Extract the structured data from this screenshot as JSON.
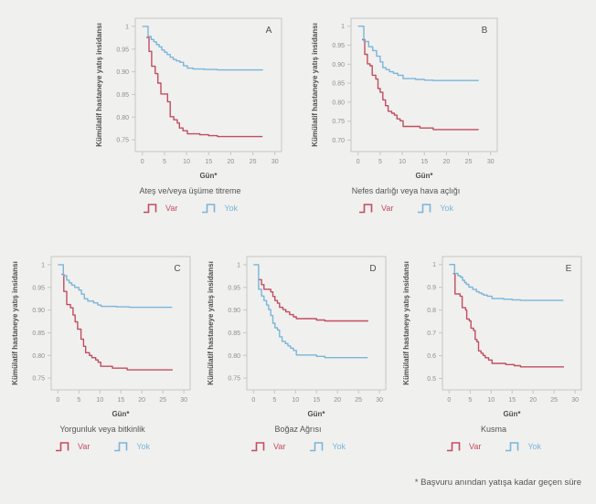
{
  "colors": {
    "var": "#c24d5e",
    "yok": "#7ab5d8",
    "frame": "#c6c6c6",
    "background": "#f0f0ef",
    "tick_text": "#8e8e8e",
    "label_text": "#4f4f4f"
  },
  "legend": {
    "var_label": "Var",
    "yok_label": "Yok"
  },
  "footnote": "* Başvuru anından yatışa kadar geçen süre",
  "chart_data": [
    {
      "type": "line",
      "step": true,
      "panel": "A",
      "title": "Ateş ve/veya üşüme titreme",
      "xlabel": "Gün*",
      "ylabel": "Kümülatif hastaneye yatış insidansı",
      "grid": false,
      "legend_position": "below",
      "xlim": [
        -1.6,
        31.5
      ],
      "ylim": [
        0.724,
        1.018
      ],
      "xticks": [
        0,
        5,
        10,
        15,
        20,
        25,
        30
      ],
      "yticks": [
        {
          "v": 0.75,
          "label": "0.75"
        },
        {
          "v": 0.8,
          "label": "0.80"
        },
        {
          "v": 0.85,
          "label": "0.85"
        },
        {
          "v": 0.9,
          "label": "0.90"
        },
        {
          "v": 0.95,
          "label": "0.95"
        },
        {
          "v": 1.0,
          "label": "1"
        }
      ],
      "series": [
        {
          "name": "Var",
          "color": "var",
          "points": [
            [
              0.9,
              0.976
            ],
            [
              1.5,
              0.945
            ],
            [
              2.1,
              0.912
            ],
            [
              2.9,
              0.896
            ],
            [
              3.5,
              0.875
            ],
            [
              4.2,
              0.851
            ],
            [
              5.7,
              0.834
            ],
            [
              6.3,
              0.801
            ],
            [
              7.1,
              0.794
            ],
            [
              7.9,
              0.787
            ],
            [
              8.4,
              0.776
            ],
            [
              9.2,
              0.77
            ],
            [
              10.2,
              0.763
            ],
            [
              13,
              0.761
            ],
            [
              15,
              0.759
            ],
            [
              17,
              0.757
            ],
            [
              27.2,
              0.757
            ]
          ]
        },
        {
          "name": "Yok",
          "color": "yok",
          "points": [
            [
              0,
              1
            ],
            [
              1.3,
              0.978
            ],
            [
              2,
              0.971
            ],
            [
              2.6,
              0.966
            ],
            [
              3.2,
              0.96
            ],
            [
              3.8,
              0.955
            ],
            [
              4.4,
              0.948
            ],
            [
              5,
              0.943
            ],
            [
              5.6,
              0.938
            ],
            [
              6.3,
              0.932
            ],
            [
              7,
              0.927
            ],
            [
              7.7,
              0.924
            ],
            [
              8.5,
              0.921
            ],
            [
              9.3,
              0.913
            ],
            [
              10.2,
              0.908
            ],
            [
              11.5,
              0.906
            ],
            [
              14,
              0.905
            ],
            [
              17,
              0.904
            ],
            [
              27.2,
              0.903
            ]
          ]
        }
      ]
    },
    {
      "type": "line",
      "step": true,
      "panel": "B",
      "title": "Nefes darlığı veya hava açlığı",
      "xlabel": "Gün*",
      "ylabel": "Kümülatif hastaneye yatış insidansı",
      "grid": false,
      "legend_position": "below",
      "xlim": [
        -1.6,
        31.5
      ],
      "ylim": [
        0.67,
        1.021
      ],
      "xticks": [
        0,
        5,
        10,
        15,
        20,
        25,
        30
      ],
      "yticks": [
        {
          "v": 0.7,
          "label": "0.70"
        },
        {
          "v": 0.75,
          "label": "0.75"
        },
        {
          "v": 0.8,
          "label": "0.80"
        },
        {
          "v": 0.85,
          "label": "0.85"
        },
        {
          "v": 0.9,
          "label": "0.90"
        },
        {
          "v": 0.95,
          "label": "0.95"
        },
        {
          "v": 1.0,
          "label": "1"
        }
      ],
      "series": [
        {
          "name": "Var",
          "color": "var",
          "points": [
            [
              0.9,
              0.965
            ],
            [
              1.5,
              0.926
            ],
            [
              2.1,
              0.901
            ],
            [
              2.7,
              0.896
            ],
            [
              3.2,
              0.871
            ],
            [
              4,
              0.861
            ],
            [
              4.5,
              0.836
            ],
            [
              5,
              0.826
            ],
            [
              5.6,
              0.806
            ],
            [
              6.2,
              0.791
            ],
            [
              6.8,
              0.776
            ],
            [
              7.6,
              0.771
            ],
            [
              8.2,
              0.766
            ],
            [
              8.8,
              0.756
            ],
            [
              9.5,
              0.751
            ],
            [
              10.2,
              0.736
            ],
            [
              14,
              0.732
            ],
            [
              17,
              0.728
            ],
            [
              27.2,
              0.727
            ]
          ]
        },
        {
          "name": "Yok",
          "color": "yok",
          "points": [
            [
              0,
              1
            ],
            [
              1.3,
              0.96
            ],
            [
              2.4,
              0.946
            ],
            [
              3.3,
              0.936
            ],
            [
              4.2,
              0.921
            ],
            [
              5,
              0.906
            ],
            [
              5.6,
              0.891
            ],
            [
              6.3,
              0.886
            ],
            [
              7.1,
              0.88
            ],
            [
              8,
              0.876
            ],
            [
              9,
              0.871
            ],
            [
              10.2,
              0.862
            ],
            [
              13,
              0.86
            ],
            [
              15,
              0.858
            ],
            [
              17,
              0.857
            ],
            [
              27.2,
              0.856
            ]
          ]
        }
      ]
    },
    {
      "type": "line",
      "step": true,
      "panel": "C",
      "title": "Yorgunluk veya bitkinlik",
      "xlabel": "Gün*",
      "ylabel": "Kümülatif hastaneye yatış insidansı",
      "grid": false,
      "legend_position": "below",
      "xlim": [
        -1.6,
        31.5
      ],
      "ylim": [
        0.724,
        1.018
      ],
      "xticks": [
        0,
        5,
        10,
        15,
        20,
        25,
        30
      ],
      "yticks": [
        {
          "v": 0.75,
          "label": "0.75"
        },
        {
          "v": 0.8,
          "label": "0.80"
        },
        {
          "v": 0.85,
          "label": "0.85"
        },
        {
          "v": 0.9,
          "label": "0.90"
        },
        {
          "v": 0.95,
          "label": "0.95"
        },
        {
          "v": 1.0,
          "label": "1"
        }
      ],
      "series": [
        {
          "name": "Var",
          "color": "var",
          "points": [
            [
              0.9,
              0.979
            ],
            [
              1.4,
              0.941
            ],
            [
              2.1,
              0.912
            ],
            [
              3,
              0.905
            ],
            [
              3.6,
              0.889
            ],
            [
              4.1,
              0.874
            ],
            [
              4.7,
              0.858
            ],
            [
              5.5,
              0.836
            ],
            [
              6.1,
              0.82
            ],
            [
              6.6,
              0.806
            ],
            [
              7.5,
              0.8
            ],
            [
              8.1,
              0.795
            ],
            [
              9,
              0.79
            ],
            [
              9.6,
              0.785
            ],
            [
              10.2,
              0.776
            ],
            [
              13,
              0.772
            ],
            [
              16.5,
              0.768
            ],
            [
              27.2,
              0.767
            ]
          ]
        },
        {
          "name": "Yok",
          "color": "yok",
          "points": [
            [
              0,
              1
            ],
            [
              1.3,
              0.976
            ],
            [
              2.1,
              0.966
            ],
            [
              2.7,
              0.96
            ],
            [
              3.3,
              0.955
            ],
            [
              4,
              0.95
            ],
            [
              5,
              0.944
            ],
            [
              5.6,
              0.935
            ],
            [
              6.3,
              0.925
            ],
            [
              7.1,
              0.92
            ],
            [
              8.5,
              0.916
            ],
            [
              9.5,
              0.911
            ],
            [
              10.3,
              0.908
            ],
            [
              14,
              0.907
            ],
            [
              17,
              0.906
            ],
            [
              27.2,
              0.906
            ]
          ]
        }
      ]
    },
    {
      "type": "line",
      "step": true,
      "panel": "D",
      "title": "Boğaz Ağrısı",
      "xlabel": "Gün*",
      "ylabel": "Kümülatif hastaneye yatış insidansı",
      "grid": false,
      "legend_position": "below",
      "xlim": [
        -1.6,
        31.5
      ],
      "ylim": [
        0.724,
        1.018
      ],
      "xticks": [
        0,
        5,
        10,
        15,
        20,
        25,
        30
      ],
      "yticks": [
        {
          "v": 0.75,
          "label": "0.75"
        },
        {
          "v": 0.8,
          "label": "0.80"
        },
        {
          "v": 0.85,
          "label": "0.85"
        },
        {
          "v": 0.9,
          "label": "0.90"
        },
        {
          "v": 0.95,
          "label": "0.95"
        },
        {
          "v": 1.0,
          "label": "1"
        }
      ],
      "series": [
        {
          "name": "Var",
          "color": "var",
          "points": [
            [
              1.1,
              0.967
            ],
            [
              1.9,
              0.956
            ],
            [
              2.5,
              0.946
            ],
            [
              4.1,
              0.94
            ],
            [
              4.6,
              0.93
            ],
            [
              5.1,
              0.921
            ],
            [
              5.7,
              0.915
            ],
            [
              6.2,
              0.906
            ],
            [
              7,
              0.901
            ],
            [
              7.7,
              0.896
            ],
            [
              8.6,
              0.89
            ],
            [
              9.5,
              0.885
            ],
            [
              10.2,
              0.881
            ],
            [
              15,
              0.878
            ],
            [
              17,
              0.876
            ],
            [
              27.2,
              0.875
            ]
          ]
        },
        {
          "name": "Yok",
          "color": "yok",
          "points": [
            [
              0,
              1
            ],
            [
              1.2,
              0.946
            ],
            [
              1.9,
              0.931
            ],
            [
              2.5,
              0.921
            ],
            [
              3.1,
              0.911
            ],
            [
              3.6,
              0.901
            ],
            [
              4.1,
              0.888
            ],
            [
              4.6,
              0.871
            ],
            [
              5.1,
              0.861
            ],
            [
              5.7,
              0.856
            ],
            [
              6.2,
              0.841
            ],
            [
              6.8,
              0.831
            ],
            [
              7.6,
              0.826
            ],
            [
              8.2,
              0.821
            ],
            [
              8.8,
              0.816
            ],
            [
              9.5,
              0.811
            ],
            [
              10.2,
              0.801
            ],
            [
              15,
              0.798
            ],
            [
              17,
              0.795
            ],
            [
              27.2,
              0.795
            ]
          ]
        }
      ]
    },
    {
      "type": "line",
      "step": true,
      "panel": "E",
      "title": "Kusma",
      "xlabel": "Gün*",
      "ylabel": "Kümülatif hastaneye yatış insidansı",
      "grid": false,
      "legend_position": "below",
      "xlim": [
        -1.6,
        31.5
      ],
      "ylim": [
        0.45,
        1.035
      ],
      "xticks": [
        0,
        5,
        10,
        15,
        20,
        25,
        30
      ],
      "yticks": [
        {
          "v": 0.5,
          "label": "0.5"
        },
        {
          "v": 0.6,
          "label": "0.6"
        },
        {
          "v": 0.7,
          "label": "0.7"
        },
        {
          "v": 0.8,
          "label": "0.8"
        },
        {
          "v": 0.9,
          "label": "0.9"
        },
        {
          "v": 1.0,
          "label": "1"
        }
      ],
      "series": [
        {
          "name": "Var",
          "color": "var",
          "points": [
            [
              0.9,
              0.96
            ],
            [
              1.4,
              0.871
            ],
            [
              2.6,
              0.861
            ],
            [
              3.1,
              0.811
            ],
            [
              3.9,
              0.801
            ],
            [
              4.2,
              0.761
            ],
            [
              4.8,
              0.753
            ],
            [
              5.2,
              0.721
            ],
            [
              5.8,
              0.711
            ],
            [
              6.2,
              0.671
            ],
            [
              6.6,
              0.661
            ],
            [
              7,
              0.621
            ],
            [
              7.6,
              0.611
            ],
            [
              8.1,
              0.601
            ],
            [
              8.6,
              0.591
            ],
            [
              9.4,
              0.581
            ],
            [
              10.2,
              0.566
            ],
            [
              13.5,
              0.561
            ],
            [
              15.5,
              0.556
            ],
            [
              17,
              0.551
            ],
            [
              27.2,
              0.548
            ]
          ]
        },
        {
          "name": "Yok",
          "color": "yok",
          "points": [
            [
              0,
              1
            ],
            [
              1.3,
              0.961
            ],
            [
              2.1,
              0.951
            ],
            [
              2.7,
              0.945
            ],
            [
              3.2,
              0.931
            ],
            [
              3.7,
              0.921
            ],
            [
              4.1,
              0.913
            ],
            [
              4.7,
              0.901
            ],
            [
              5.6,
              0.891
            ],
            [
              6.5,
              0.881
            ],
            [
              7.1,
              0.876
            ],
            [
              7.7,
              0.871
            ],
            [
              8.2,
              0.866
            ],
            [
              9.1,
              0.861
            ],
            [
              10.2,
              0.851
            ],
            [
              13,
              0.848
            ],
            [
              15,
              0.845
            ],
            [
              17,
              0.843
            ],
            [
              27.2,
              0.843
            ]
          ]
        }
      ]
    }
  ]
}
